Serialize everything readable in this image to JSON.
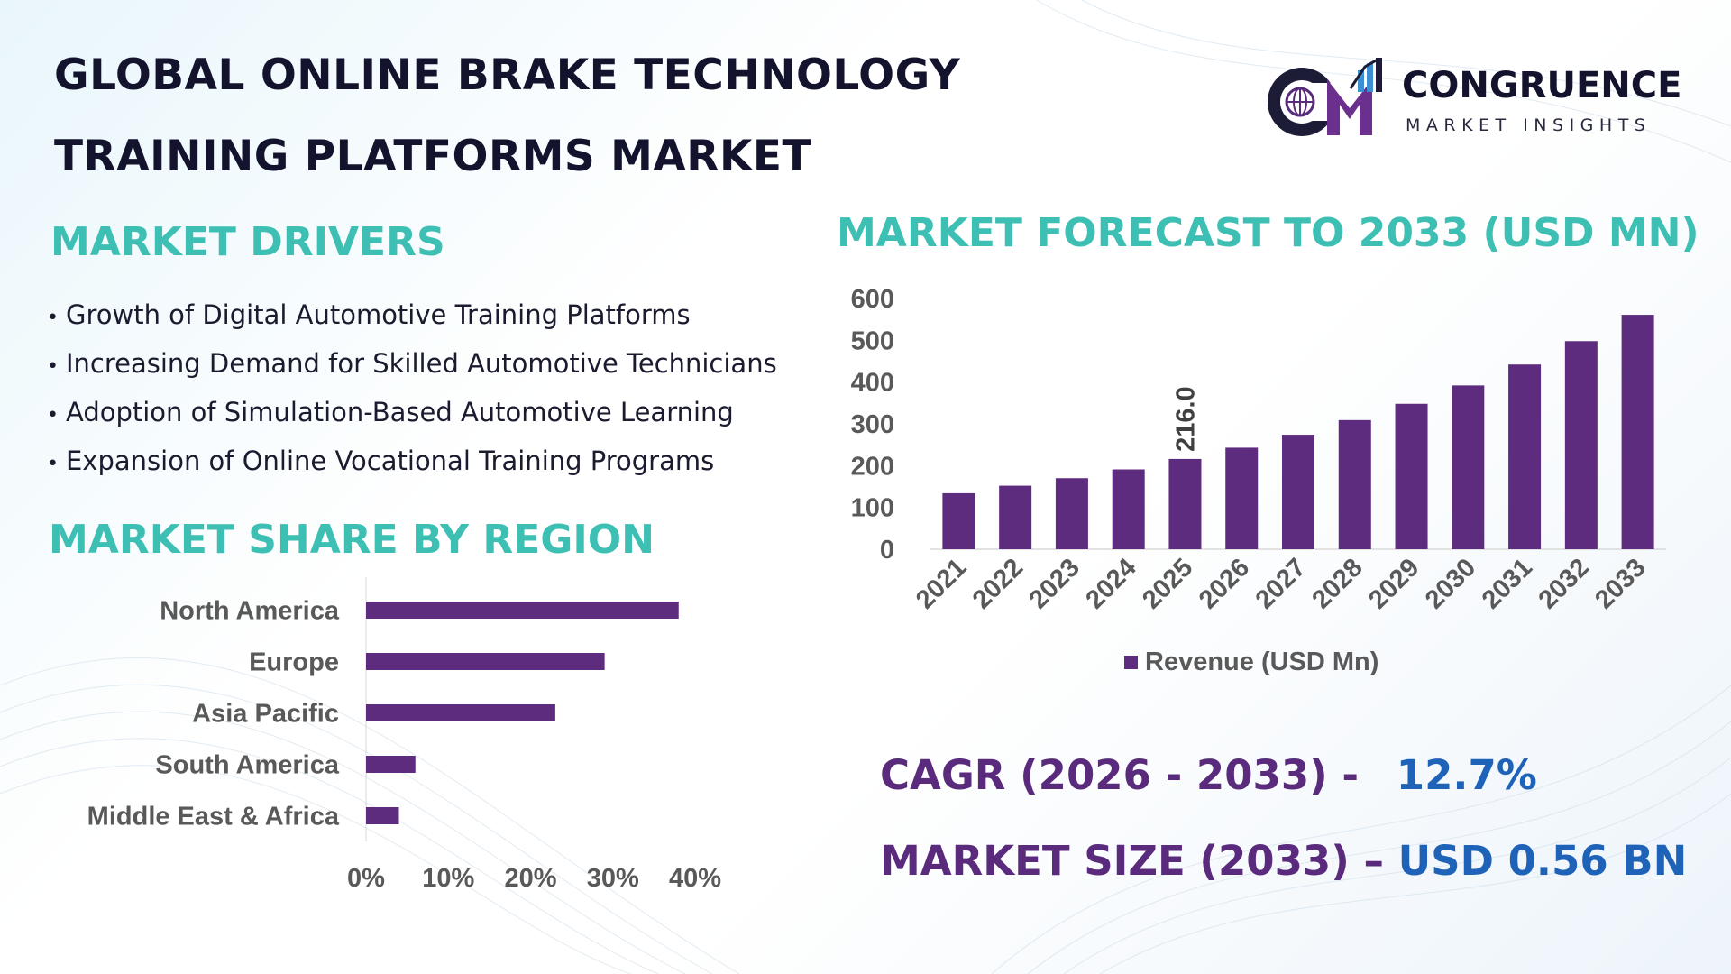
{
  "header": {
    "title_line1": "GLOBAL ONLINE BRAKE TECHNOLOGY",
    "title_line2": "TRAINING PLATFORMS MARKET"
  },
  "logo": {
    "name": "CONGRUENCE",
    "subtitle": "MARKET INSIGHTS",
    "initials": "CM"
  },
  "drivers": {
    "title": "MARKET DRIVERS",
    "bullet": "•",
    "items": [
      "Growth of Digital Automotive Training Platforms",
      "Increasing Demand for Skilled Automotive Technicians",
      "Adoption of Simulation-Based Automotive Learning",
      "Expansion of Online Vocational Training Programs"
    ]
  },
  "region_section": {
    "title": "MARKET SHARE BY REGION"
  },
  "forecast_section": {
    "title": "MARKET FORECAST TO 2033 (USD MN)"
  },
  "stats": {
    "cagr_label": "CAGR (2026 - 2033) -",
    "cagr_value": "12.7%",
    "size_label": "MARKET SIZE (2033) –",
    "size_value": "USD 0.56 BN"
  },
  "colors": {
    "bar": "#5e2c7e",
    "section_title": "#3dbfb3",
    "title": "#13132e",
    "stat_label": "#5a2a7c",
    "stat_value": "#1f63b8",
    "axis_text": "#595959"
  },
  "chart_data": [
    {
      "type": "bar",
      "orientation": "horizontal",
      "categories": [
        "North America",
        "Europe",
        "Asia Pacific",
        "South America",
        "Middle East & Africa"
      ],
      "values": [
        38,
        29,
        23,
        6,
        4
      ],
      "xticks": [
        "0%",
        "10%",
        "20%",
        "30%",
        "40%"
      ],
      "xlim": [
        0,
        40
      ],
      "grid": false
    },
    {
      "type": "bar",
      "orientation": "vertical",
      "categories": [
        "2021",
        "2022",
        "2023",
        "2024",
        "2025",
        "2026",
        "2027",
        "2028",
        "2029",
        "2030",
        "2031",
        "2032",
        "2033"
      ],
      "series": [
        {
          "name": "Revenue (USD Mn)",
          "values": [
            134,
            152,
            170,
            191,
            216.0,
            243,
            274,
            309,
            348,
            392,
            442,
            498,
            561
          ]
        }
      ],
      "annotations": [
        {
          "category": "2025",
          "label": "216.0"
        }
      ],
      "yticks": [
        "0",
        "100",
        "200",
        "300",
        "400",
        "500",
        "600"
      ],
      "ylim": [
        0,
        600
      ],
      "grid": false,
      "legend": "bottom"
    }
  ]
}
